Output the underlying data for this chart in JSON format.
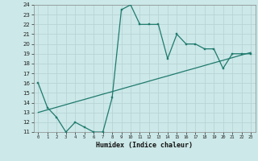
{
  "xlabel": "Humidex (Indice chaleur)",
  "x": [
    0,
    1,
    2,
    3,
    4,
    5,
    6,
    7,
    8,
    9,
    10,
    11,
    12,
    13,
    14,
    15,
    16,
    17,
    18,
    19,
    20,
    21,
    22,
    23
  ],
  "y_curve": [
    16,
    13.5,
    12.5,
    11,
    12,
    11.5,
    11,
    11,
    14.5,
    23.5,
    24,
    22,
    22,
    22,
    18.5,
    21,
    20,
    20,
    19.5,
    19.5,
    17.5,
    19,
    19,
    19
  ],
  "y_line": [
    13.0,
    13.27,
    13.53,
    13.8,
    14.07,
    14.33,
    14.6,
    14.87,
    15.13,
    15.4,
    15.67,
    15.93,
    16.2,
    16.47,
    16.73,
    17.0,
    17.27,
    17.53,
    17.8,
    18.07,
    18.33,
    18.6,
    18.87,
    19.13
  ],
  "line_color": "#1f7a6e",
  "bg_color": "#cce8e8",
  "grid_color": "#b8d4d4",
  "ylim": [
    11,
    24
  ],
  "xlim": [
    -0.5,
    23.5
  ],
  "yticks": [
    11,
    12,
    13,
    14,
    15,
    16,
    17,
    18,
    19,
    20,
    21,
    22,
    23,
    24
  ],
  "xticks": [
    0,
    1,
    2,
    3,
    4,
    5,
    6,
    7,
    8,
    9,
    10,
    11,
    12,
    13,
    14,
    15,
    16,
    17,
    18,
    19,
    20,
    21,
    22,
    23
  ]
}
